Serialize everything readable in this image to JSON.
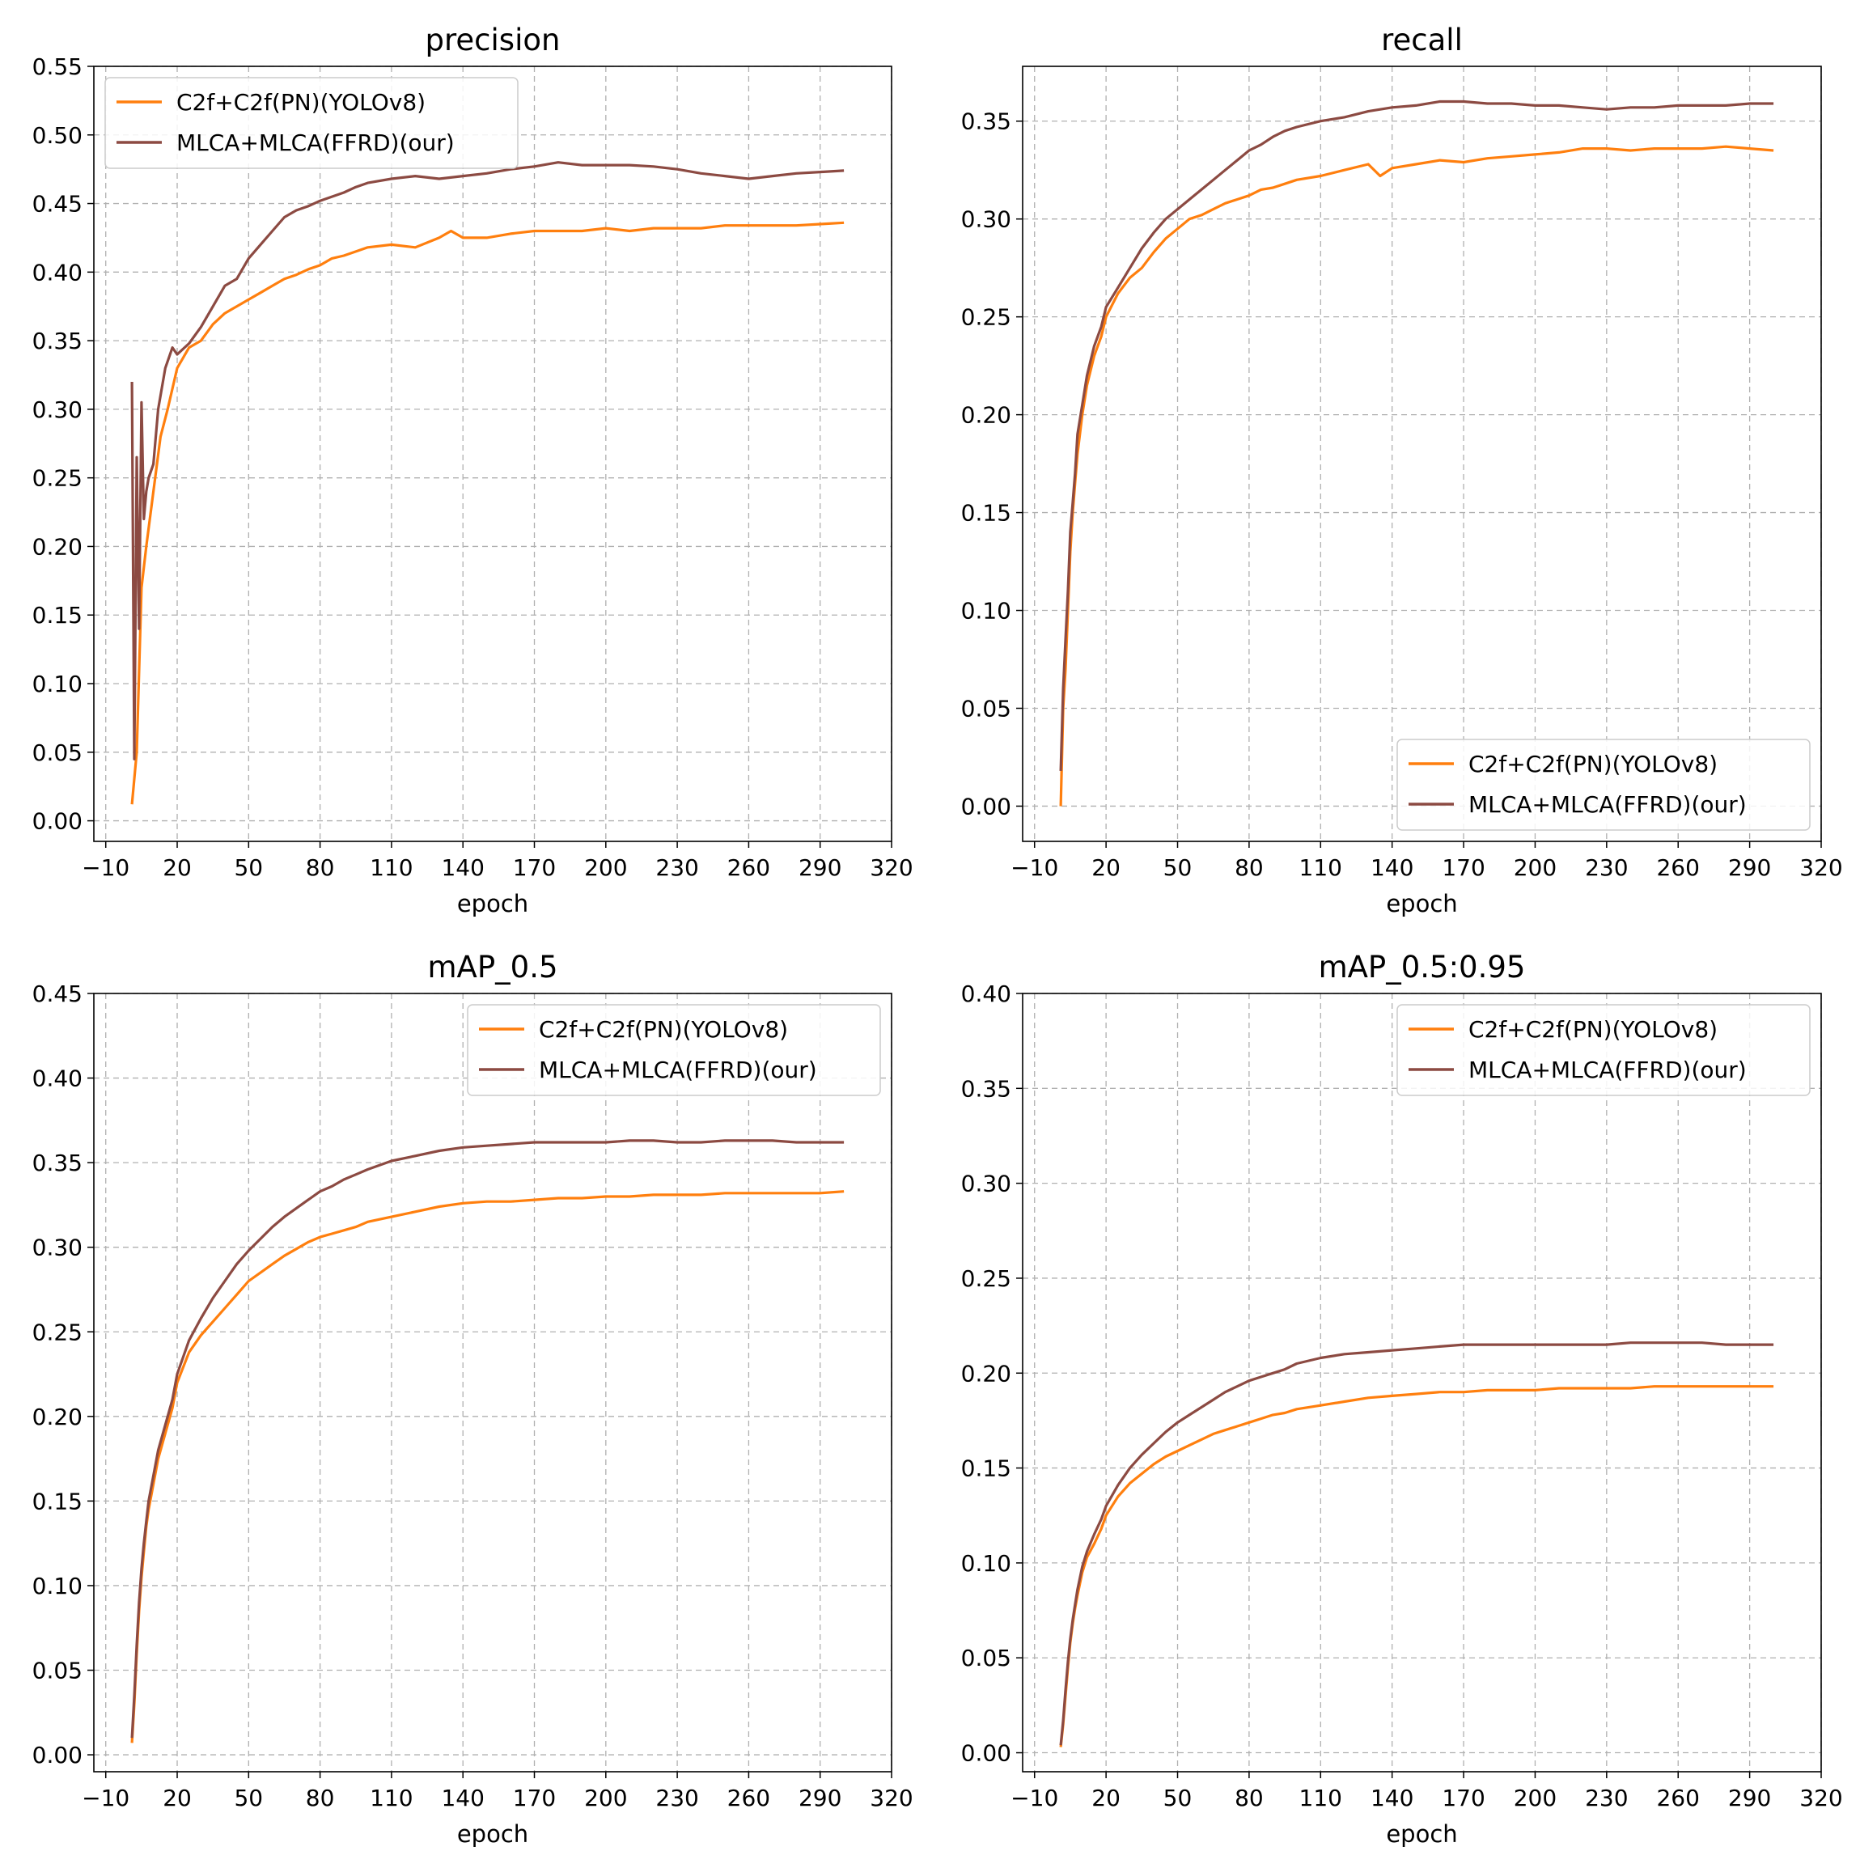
{
  "colors": {
    "yolov8": "#ff7f0e",
    "ours": "#8c4a42",
    "grid": "#b0b0b0",
    "axis": "#000000"
  },
  "chart_data": [
    {
      "type": "line",
      "title": "precision",
      "xlabel": "epoch",
      "ylabel": "",
      "xlim": [
        -15,
        320
      ],
      "ylim": [
        -0.015,
        0.55
      ],
      "xticks": [
        "−10",
        "20",
        "50",
        "80",
        "110",
        "140",
        "170",
        "200",
        "230",
        "260",
        "290",
        "320"
      ],
      "yticks": [
        "0.00",
        "0.05",
        "0.10",
        "0.15",
        "0.20",
        "0.25",
        "0.30",
        "0.35",
        "0.40",
        "0.45",
        "0.50",
        "0.55"
      ],
      "grid": true,
      "legend": "top-left",
      "series": [
        {
          "name": "C2f+C2f(PN)(YOLOv8)",
          "color": "#ff7f0e",
          "x": [
            1,
            3,
            5,
            7,
            10,
            13,
            16,
            20,
            25,
            30,
            35,
            40,
            45,
            50,
            55,
            60,
            65,
            70,
            75,
            80,
            85,
            90,
            95,
            100,
            110,
            120,
            130,
            135,
            140,
            150,
            160,
            170,
            180,
            190,
            200,
            210,
            220,
            230,
            240,
            250,
            260,
            270,
            280,
            290,
            300
          ],
          "y": [
            0.012,
            0.05,
            0.17,
            0.2,
            0.24,
            0.28,
            0.3,
            0.33,
            0.345,
            0.35,
            0.362,
            0.37,
            0.375,
            0.38,
            0.385,
            0.39,
            0.395,
            0.398,
            0.402,
            0.405,
            0.41,
            0.412,
            0.415,
            0.418,
            0.42,
            0.418,
            0.425,
            0.43,
            0.425,
            0.425,
            0.428,
            0.43,
            0.43,
            0.43,
            0.432,
            0.43,
            0.432,
            0.432,
            0.432,
            0.434,
            0.434,
            0.434,
            0.434,
            0.435,
            0.436
          ]
        },
        {
          "name": "MLCA+MLCA(FFRD)(our)",
          "color": "#8c4a42",
          "x": [
            1,
            2,
            3,
            4,
            5,
            6,
            7,
            8,
            10,
            12,
            15,
            18,
            20,
            25,
            30,
            35,
            40,
            45,
            50,
            55,
            60,
            65,
            70,
            75,
            80,
            85,
            90,
            95,
            100,
            110,
            120,
            130,
            140,
            150,
            160,
            170,
            180,
            190,
            200,
            210,
            220,
            230,
            240,
            250,
            260,
            270,
            280,
            290,
            300
          ],
          "y": [
            0.32,
            0.045,
            0.265,
            0.14,
            0.305,
            0.22,
            0.24,
            0.25,
            0.26,
            0.3,
            0.33,
            0.345,
            0.34,
            0.348,
            0.36,
            0.375,
            0.39,
            0.395,
            0.41,
            0.42,
            0.43,
            0.44,
            0.445,
            0.448,
            0.452,
            0.455,
            0.458,
            0.462,
            0.465,
            0.468,
            0.47,
            0.468,
            0.47,
            0.472,
            0.475,
            0.477,
            0.48,
            0.478,
            0.478,
            0.478,
            0.477,
            0.475,
            0.472,
            0.47,
            0.468,
            0.47,
            0.472,
            0.473,
            0.474
          ]
        }
      ]
    },
    {
      "type": "line",
      "title": "recall",
      "xlabel": "epoch",
      "ylabel": "",
      "xlim": [
        -15,
        320
      ],
      "ylim": [
        -0.018,
        0.378
      ],
      "xticks": [
        "−10",
        "20",
        "50",
        "80",
        "110",
        "140",
        "170",
        "200",
        "230",
        "260",
        "290",
        "320"
      ],
      "yticks": [
        "0.00",
        "0.05",
        "0.10",
        "0.15",
        "0.20",
        "0.25",
        "0.30",
        "0.35"
      ],
      "grid": true,
      "legend": "bottom-right",
      "series": [
        {
          "name": "C2f+C2f(PN)(YOLOv8)",
          "color": "#ff7f0e",
          "x": [
            1,
            2,
            3,
            4,
            5,
            6,
            7,
            8,
            10,
            12,
            15,
            18,
            20,
            25,
            30,
            35,
            40,
            45,
            50,
            55,
            60,
            65,
            70,
            75,
            80,
            85,
            90,
            95,
            100,
            110,
            120,
            130,
            135,
            140,
            150,
            160,
            170,
            180,
            190,
            200,
            210,
            220,
            230,
            240,
            250,
            260,
            270,
            280,
            290,
            300
          ],
          "y": [
            0.0,
            0.05,
            0.07,
            0.1,
            0.13,
            0.15,
            0.165,
            0.18,
            0.2,
            0.215,
            0.23,
            0.24,
            0.25,
            0.262,
            0.27,
            0.275,
            0.283,
            0.29,
            0.295,
            0.3,
            0.302,
            0.305,
            0.308,
            0.31,
            0.312,
            0.315,
            0.316,
            0.318,
            0.32,
            0.322,
            0.325,
            0.328,
            0.322,
            0.326,
            0.328,
            0.33,
            0.329,
            0.331,
            0.332,
            0.333,
            0.334,
            0.336,
            0.336,
            0.335,
            0.336,
            0.336,
            0.336,
            0.337,
            0.336,
            0.335
          ]
        },
        {
          "name": "MLCA+MLCA(FFRD)(our)",
          "color": "#8c4a42",
          "x": [
            1,
            2,
            3,
            4,
            5,
            6,
            7,
            8,
            10,
            12,
            15,
            18,
            20,
            25,
            30,
            35,
            40,
            45,
            50,
            55,
            60,
            65,
            70,
            75,
            80,
            85,
            90,
            95,
            100,
            110,
            120,
            130,
            140,
            150,
            160,
            170,
            180,
            190,
            200,
            210,
            220,
            230,
            240,
            250,
            260,
            270,
            280,
            290,
            300
          ],
          "y": [
            0.018,
            0.06,
            0.085,
            0.11,
            0.14,
            0.155,
            0.17,
            0.19,
            0.205,
            0.22,
            0.235,
            0.245,
            0.255,
            0.265,
            0.275,
            0.285,
            0.293,
            0.3,
            0.305,
            0.31,
            0.315,
            0.32,
            0.325,
            0.33,
            0.335,
            0.338,
            0.342,
            0.345,
            0.347,
            0.35,
            0.352,
            0.355,
            0.357,
            0.358,
            0.36,
            0.36,
            0.359,
            0.359,
            0.358,
            0.358,
            0.357,
            0.356,
            0.357,
            0.357,
            0.358,
            0.358,
            0.358,
            0.359,
            0.359
          ]
        }
      ]
    },
    {
      "type": "line",
      "title": "mAP_0.5",
      "xlabel": "epoch",
      "ylabel": "",
      "xlim": [
        -15,
        320
      ],
      "ylim": [
        -0.01,
        0.45
      ],
      "xticks": [
        "−10",
        "20",
        "50",
        "80",
        "110",
        "140",
        "170",
        "200",
        "230",
        "260",
        "290",
        "320"
      ],
      "yticks": [
        "0.00",
        "0.05",
        "0.10",
        "0.15",
        "0.20",
        "0.25",
        "0.30",
        "0.35",
        "0.40",
        "0.45"
      ],
      "grid": true,
      "legend": "top-right",
      "series": [
        {
          "name": "C2f+C2f(PN)(YOLOv8)",
          "color": "#ff7f0e",
          "x": [
            1,
            2,
            3,
            4,
            5,
            6,
            7,
            8,
            10,
            12,
            15,
            18,
            20,
            25,
            30,
            35,
            40,
            45,
            50,
            55,
            60,
            65,
            70,
            75,
            80,
            85,
            90,
            95,
            100,
            110,
            120,
            130,
            140,
            150,
            160,
            170,
            180,
            190,
            200,
            210,
            220,
            230,
            240,
            250,
            260,
            270,
            280,
            290,
            300
          ],
          "y": [
            0.007,
            0.03,
            0.06,
            0.085,
            0.105,
            0.12,
            0.135,
            0.145,
            0.16,
            0.175,
            0.19,
            0.205,
            0.22,
            0.238,
            0.248,
            0.256,
            0.264,
            0.272,
            0.28,
            0.285,
            0.29,
            0.295,
            0.299,
            0.303,
            0.306,
            0.308,
            0.31,
            0.312,
            0.315,
            0.318,
            0.321,
            0.324,
            0.326,
            0.327,
            0.327,
            0.328,
            0.329,
            0.329,
            0.33,
            0.33,
            0.331,
            0.331,
            0.331,
            0.332,
            0.332,
            0.332,
            0.332,
            0.332,
            0.333
          ]
        },
        {
          "name": "MLCA+MLCA(FFRD)(our)",
          "color": "#8c4a42",
          "x": [
            1,
            2,
            3,
            4,
            5,
            6,
            7,
            8,
            10,
            12,
            15,
            18,
            20,
            25,
            30,
            35,
            40,
            45,
            50,
            55,
            60,
            65,
            70,
            75,
            80,
            85,
            90,
            95,
            100,
            110,
            120,
            130,
            140,
            150,
            160,
            170,
            180,
            190,
            200,
            210,
            220,
            230,
            240,
            250,
            260,
            270,
            280,
            290,
            300
          ],
          "y": [
            0.01,
            0.035,
            0.065,
            0.09,
            0.11,
            0.125,
            0.138,
            0.15,
            0.165,
            0.18,
            0.195,
            0.21,
            0.225,
            0.245,
            0.258,
            0.27,
            0.28,
            0.29,
            0.298,
            0.305,
            0.312,
            0.318,
            0.323,
            0.328,
            0.333,
            0.336,
            0.34,
            0.343,
            0.346,
            0.351,
            0.354,
            0.357,
            0.359,
            0.36,
            0.361,
            0.362,
            0.362,
            0.362,
            0.362,
            0.363,
            0.363,
            0.362,
            0.362,
            0.363,
            0.363,
            0.363,
            0.362,
            0.362,
            0.362
          ]
        }
      ]
    },
    {
      "type": "line",
      "title": "mAP_0.5:0.95",
      "xlabel": "epoch",
      "ylabel": "",
      "xlim": [
        -15,
        320
      ],
      "ylim": [
        -0.01,
        0.4
      ],
      "xticks": [
        "−10",
        "20",
        "50",
        "80",
        "110",
        "140",
        "170",
        "200",
        "230",
        "260",
        "290",
        "320"
      ],
      "yticks": [
        "0.00",
        "0.05",
        "0.10",
        "0.15",
        "0.20",
        "0.25",
        "0.30",
        "0.35",
        "0.40"
      ],
      "grid": true,
      "legend": "top-right",
      "series": [
        {
          "name": "C2f+C2f(PN)(YOLOv8)",
          "color": "#ff7f0e",
          "x": [
            1,
            2,
            3,
            4,
            5,
            6,
            7,
            8,
            10,
            12,
            15,
            18,
            20,
            25,
            30,
            35,
            40,
            45,
            50,
            55,
            60,
            65,
            70,
            75,
            80,
            85,
            90,
            95,
            100,
            110,
            120,
            130,
            140,
            150,
            160,
            170,
            180,
            190,
            200,
            210,
            220,
            230,
            240,
            250,
            260,
            270,
            280,
            290,
            300
          ],
          "y": [
            0.003,
            0.015,
            0.03,
            0.045,
            0.058,
            0.068,
            0.076,
            0.083,
            0.095,
            0.103,
            0.11,
            0.118,
            0.125,
            0.135,
            0.142,
            0.147,
            0.152,
            0.156,
            0.159,
            0.162,
            0.165,
            0.168,
            0.17,
            0.172,
            0.174,
            0.176,
            0.178,
            0.179,
            0.181,
            0.183,
            0.185,
            0.187,
            0.188,
            0.189,
            0.19,
            0.19,
            0.191,
            0.191,
            0.191,
            0.192,
            0.192,
            0.192,
            0.192,
            0.193,
            0.193,
            0.193,
            0.193,
            0.193,
            0.193
          ]
        },
        {
          "name": "MLCA+MLCA(FFRD)(our)",
          "color": "#8c4a42",
          "x": [
            1,
            2,
            3,
            4,
            5,
            6,
            7,
            8,
            10,
            12,
            15,
            18,
            20,
            25,
            30,
            35,
            40,
            45,
            50,
            55,
            60,
            65,
            70,
            75,
            80,
            85,
            90,
            95,
            100,
            110,
            120,
            130,
            140,
            150,
            160,
            170,
            180,
            190,
            200,
            210,
            220,
            230,
            240,
            250,
            260,
            270,
            280,
            290,
            300
          ],
          "y": [
            0.004,
            0.017,
            0.033,
            0.048,
            0.06,
            0.07,
            0.078,
            0.086,
            0.098,
            0.106,
            0.115,
            0.123,
            0.13,
            0.141,
            0.15,
            0.157,
            0.163,
            0.169,
            0.174,
            0.178,
            0.182,
            0.186,
            0.19,
            0.193,
            0.196,
            0.198,
            0.2,
            0.202,
            0.205,
            0.208,
            0.21,
            0.211,
            0.212,
            0.213,
            0.214,
            0.215,
            0.215,
            0.215,
            0.215,
            0.215,
            0.215,
            0.215,
            0.216,
            0.216,
            0.216,
            0.216,
            0.215,
            0.215,
            0.215
          ]
        }
      ]
    }
  ]
}
